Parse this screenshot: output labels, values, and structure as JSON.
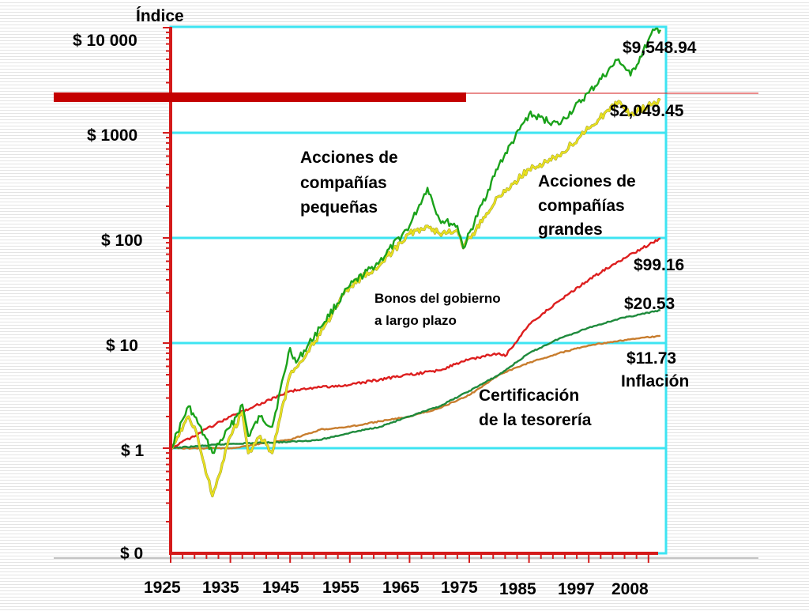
{
  "chart_data": {
    "type": "line",
    "ylabel": "Índice",
    "y_scale": "log",
    "y_ticks": [
      "$ 10 000",
      "$ 1000",
      "$ 100",
      "$ 10",
      "$ 1",
      "$ 0"
    ],
    "x_ticks": [
      "1925",
      "1935",
      "1945",
      "1955",
      "1965",
      "1975",
      "1985",
      "1997",
      "2008"
    ],
    "xlim": [
      1925,
      2008
    ],
    "series": [
      {
        "name": "Acciones de compañías pequeñas",
        "end_value": "$9,548.94",
        "color": "#1aa21a",
        "x": [
          1925,
          1928,
          1929,
          1932,
          1935,
          1937,
          1938,
          1940,
          1942,
          1945,
          1946,
          1950,
          1955,
          1960,
          1965,
          1968,
          1970,
          1973,
          1974,
          1980,
          1985,
          1990,
          1995,
          2000,
          2002,
          2006,
          2007
        ],
        "y": [
          1.0,
          2.5,
          2.0,
          0.9,
          1.6,
          2.6,
          1.3,
          2.0,
          1.6,
          9.0,
          6.5,
          14,
          35,
          60,
          130,
          300,
          150,
          130,
          80,
          500,
          1500,
          1200,
          2400,
          5000,
          3500,
          9500,
          9549
        ]
      },
      {
        "name": "Acciones de compañías grandes",
        "end_value": "$2,049.45",
        "color": "#e8e020",
        "x": [
          1925,
          1928,
          1929,
          1932,
          1935,
          1937,
          1938,
          1940,
          1942,
          1945,
          1950,
          1955,
          1960,
          1965,
          1968,
          1970,
          1973,
          1974,
          1980,
          1985,
          1990,
          1995,
          2000,
          2002,
          2007
        ],
        "y": [
          1.0,
          2.0,
          1.6,
          0.35,
          1.3,
          2.2,
          0.9,
          1.3,
          0.9,
          5.0,
          12,
          35,
          55,
          110,
          130,
          110,
          120,
          80,
          250,
          450,
          600,
          1100,
          2000,
          1500,
          2049
        ]
      },
      {
        "name": "Bonos del gobierno a largo plazo",
        "end_value": "$99.16",
        "color": "#dd1e1e",
        "x": [
          1925,
          1935,
          1945,
          1950,
          1955,
          1960,
          1965,
          1970,
          1975,
          1980,
          1981,
          1985,
          1990,
          1995,
          2000,
          2007
        ],
        "y": [
          1.0,
          2.0,
          3.5,
          3.8,
          4.0,
          4.5,
          5.0,
          5.5,
          7.0,
          8.0,
          7.5,
          15,
          25,
          40,
          60,
          99
        ]
      },
      {
        "name": "Certificación de la tesorería",
        "end_value": "$20.53",
        "color": "#1e8a3c",
        "x": [
          1925,
          1935,
          1945,
          1950,
          1955,
          1960,
          1965,
          1970,
          1975,
          1980,
          1985,
          1990,
          1995,
          2000,
          2007
        ],
        "y": [
          1.0,
          1.1,
          1.15,
          1.2,
          1.4,
          1.6,
          2.0,
          2.5,
          3.5,
          5.0,
          8.0,
          11,
          14,
          17,
          20.5
        ]
      },
      {
        "name": "Inflación",
        "end_value": "$11.73",
        "color": "#c87d2e",
        "x": [
          1925,
          1935,
          1945,
          1950,
          1955,
          1960,
          1965,
          1970,
          1975,
          1980,
          1985,
          1990,
          1995,
          2000,
          2007
        ],
        "y": [
          1.0,
          1.0,
          1.2,
          1.5,
          1.6,
          1.8,
          2.0,
          2.4,
          3.2,
          5.0,
          6.5,
          8.0,
          9.5,
          10.5,
          11.73
        ]
      }
    ],
    "annotations": {
      "small_stocks_label": [
        "Acciones de",
        "compañías",
        "pequeñas"
      ],
      "large_stocks_label": [
        "Acciones de",
        "compañías",
        "grandes"
      ],
      "bonds_label": [
        "Bonos del gobierno",
        "a largo plazo"
      ],
      "tbills_label": [
        "Certificación",
        "de la tesorería"
      ],
      "inflation_label": "Inflación"
    },
    "colors": {
      "axis": "#d41a1a",
      "frame": "#3ee4f2",
      "gridline": "#3ee4f2",
      "bar": "#c40000"
    },
    "grid": true
  }
}
